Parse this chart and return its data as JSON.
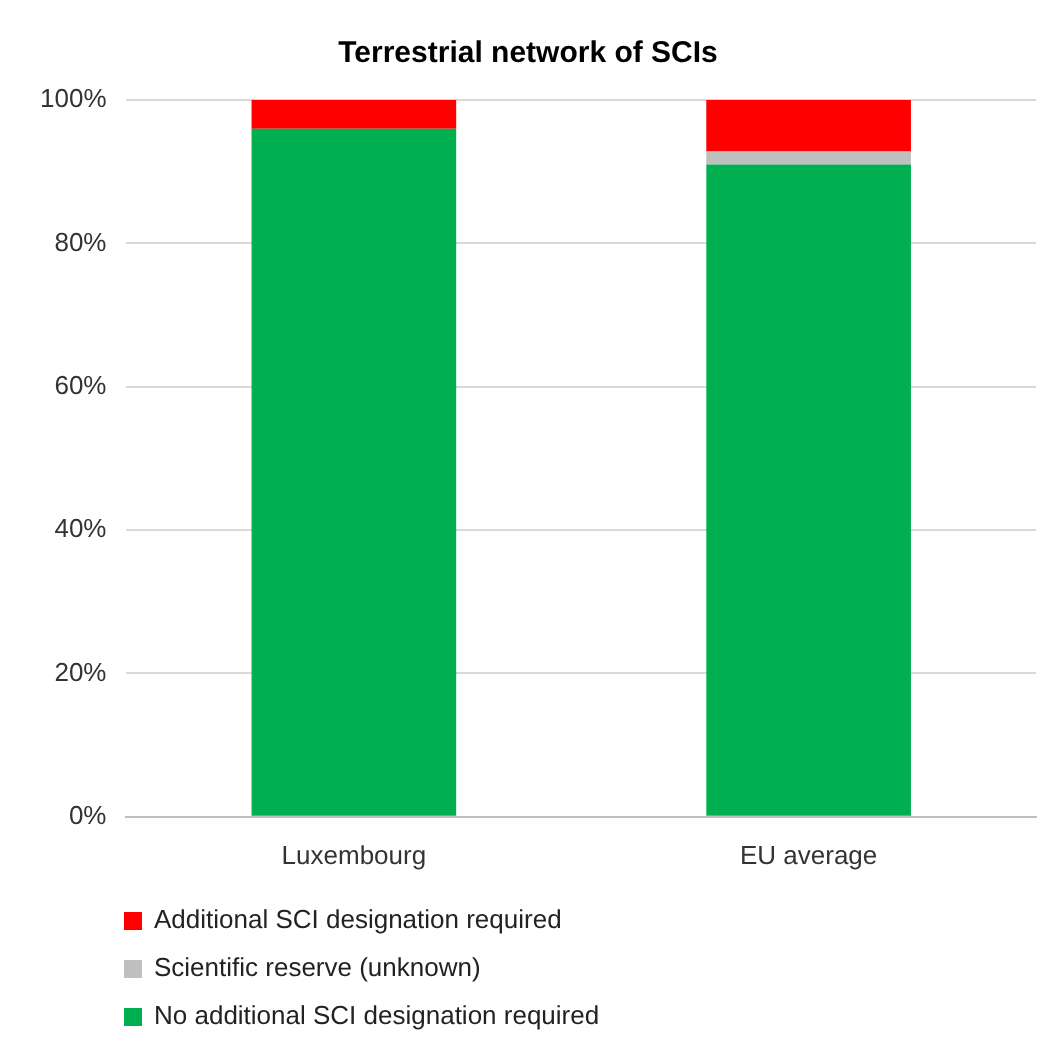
{
  "chart_data": {
    "type": "bar",
    "title": "Terrestrial network of SCIs",
    "stacked": true,
    "categories": [
      "Luxembourg",
      "EU average"
    ],
    "series": [
      {
        "name": "No additional SCI designation required",
        "color": "#00b050",
        "values": [
          96,
          91
        ]
      },
      {
        "name": "Scientific reserve (unknown)",
        "color": "#bfbfbf",
        "values": [
          0,
          1.8
        ]
      },
      {
        "name": "Additional SCI designation required",
        "color": "#ff0000",
        "values": [
          4,
          7.2
        ]
      }
    ],
    "ylim": [
      0,
      100
    ],
    "yticks": [
      {
        "value": 0,
        "label": "0%"
      },
      {
        "value": 20,
        "label": "20%"
      },
      {
        "value": 40,
        "label": "40%"
      },
      {
        "value": 60,
        "label": "60%"
      },
      {
        "value": 80,
        "label": "80%"
      },
      {
        "value": 100,
        "label": "100%"
      }
    ],
    "grid": "y",
    "legend": "bottom"
  }
}
